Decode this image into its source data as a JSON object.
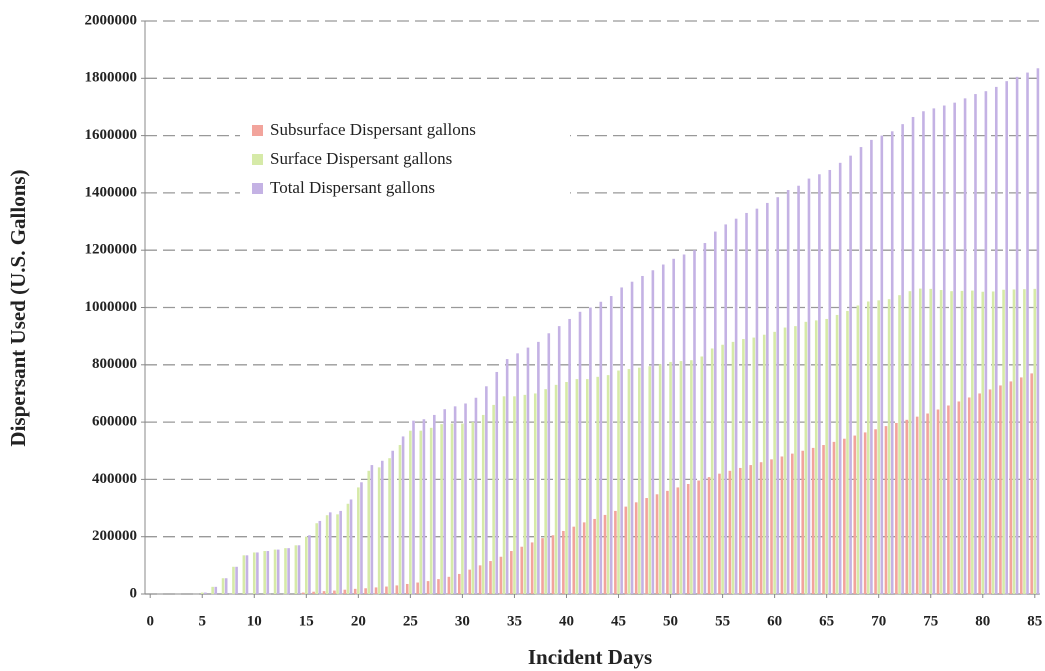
{
  "chart_data": {
    "type": "bar",
    "xlabel": "Incident Days",
    "ylabel": "Dispersant Used (U.S. Gallons)",
    "x": [
      0,
      1,
      2,
      3,
      4,
      5,
      6,
      7,
      8,
      9,
      10,
      11,
      12,
      13,
      14,
      15,
      16,
      17,
      18,
      19,
      20,
      21,
      22,
      23,
      24,
      25,
      26,
      27,
      28,
      29,
      30,
      31,
      32,
      33,
      34,
      35,
      36,
      37,
      38,
      39,
      40,
      41,
      42,
      43,
      44,
      45,
      46,
      47,
      48,
      49,
      50,
      51,
      52,
      53,
      54,
      55,
      56,
      57,
      58,
      59,
      60,
      61,
      62,
      63,
      64,
      65,
      66,
      67,
      68,
      69,
      70,
      71,
      72,
      73,
      74,
      75,
      76,
      77,
      78,
      79,
      80,
      81,
      82,
      83,
      84,
      85
    ],
    "series": [
      {
        "name": "Subsurface Dispersant gallons",
        "color": "#f2a49c",
        "values": [
          0,
          0,
          0,
          0,
          0,
          0,
          0,
          0,
          0,
          0,
          0,
          0,
          0,
          0,
          0,
          5000,
          8000,
          10000,
          12000,
          15000,
          18000,
          20000,
          23000,
          26000,
          30000,
          35000,
          40000,
          45000,
          52000,
          60000,
          70000,
          85000,
          100000,
          115000,
          130000,
          150000,
          165000,
          180000,
          195000,
          205000,
          220000,
          235000,
          250000,
          262000,
          276000,
          290000,
          305000,
          320000,
          335000,
          348000,
          360000,
          372000,
          384000,
          396000,
          408000,
          420000,
          430000,
          440000,
          450000,
          460000,
          470000,
          480000,
          490000,
          500000,
          510000,
          520000,
          531000,
          542000,
          553000,
          564000,
          575000,
          586000,
          597000,
          608000,
          619000,
          630000,
          644000,
          658000,
          672000,
          686000,
          700000,
          714000,
          728000,
          742000,
          756000,
          770000
        ]
      },
      {
        "name": "Surface Dispersant gallons",
        "color": "#d6eaa8",
        "values": [
          0,
          0,
          0,
          0,
          0,
          5000,
          25000,
          55000,
          95000,
          135000,
          145000,
          150000,
          155000,
          160000,
          170000,
          200000,
          247000,
          275000,
          278000,
          315000,
          372000,
          430000,
          442000,
          474000,
          520000,
          570000,
          570000,
          580000,
          593000,
          595000,
          595000,
          600000,
          625000,
          660000,
          690000,
          690000,
          695000,
          700000,
          715000,
          730000,
          740000,
          750000,
          750000,
          758000,
          764000,
          780000,
          785000,
          790000,
          795000,
          802000,
          810000,
          813000,
          816000,
          829000,
          857000,
          870000,
          880000,
          890000,
          895000,
          905000,
          915000,
          930000,
          935000,
          950000,
          955000,
          960000,
          974000,
          988000,
          1007000,
          1021000,
          1025000,
          1029000,
          1043000,
          1057000,
          1066000,
          1065000,
          1061000,
          1057000,
          1058000,
          1059000,
          1055000,
          1056000,
          1062000,
          1063000,
          1064000,
          1065000
        ]
      },
      {
        "name": "Total Dispersant gallons",
        "color": "#c4b2e4",
        "values": [
          0,
          0,
          0,
          0,
          0,
          5000,
          25000,
          55000,
          95000,
          135000,
          145000,
          150000,
          155000,
          160000,
          170000,
          205000,
          255000,
          285000,
          290000,
          330000,
          390000,
          450000,
          465000,
          500000,
          550000,
          605000,
          610000,
          625000,
          645000,
          655000,
          665000,
          685000,
          725000,
          775000,
          820000,
          840000,
          860000,
          880000,
          910000,
          935000,
          960000,
          985000,
          1000000,
          1020000,
          1040000,
          1070000,
          1090000,
          1110000,
          1130000,
          1150000,
          1170000,
          1185000,
          1200000,
          1225000,
          1265000,
          1290000,
          1310000,
          1330000,
          1345000,
          1365000,
          1385000,
          1410000,
          1425000,
          1450000,
          1465000,
          1480000,
          1505000,
          1530000,
          1560000,
          1585000,
          1600000,
          1615000,
          1640000,
          1665000,
          1685000,
          1695000,
          1705000,
          1715000,
          1730000,
          1745000,
          1755000,
          1770000,
          1790000,
          1805000,
          1820000,
          1835000
        ]
      }
    ],
    "xlim": [
      -0.5,
      85.5
    ],
    "xticks": [
      0,
      5,
      10,
      15,
      20,
      25,
      30,
      35,
      40,
      45,
      50,
      55,
      60,
      65,
      70,
      75,
      80,
      85
    ],
    "ylim": [
      0,
      2000000
    ],
    "yticks": [
      0,
      200000,
      400000,
      600000,
      800000,
      1000000,
      1200000,
      1400000,
      1600000,
      1800000,
      2000000
    ],
    "grid": true,
    "legend": "upper left"
  }
}
